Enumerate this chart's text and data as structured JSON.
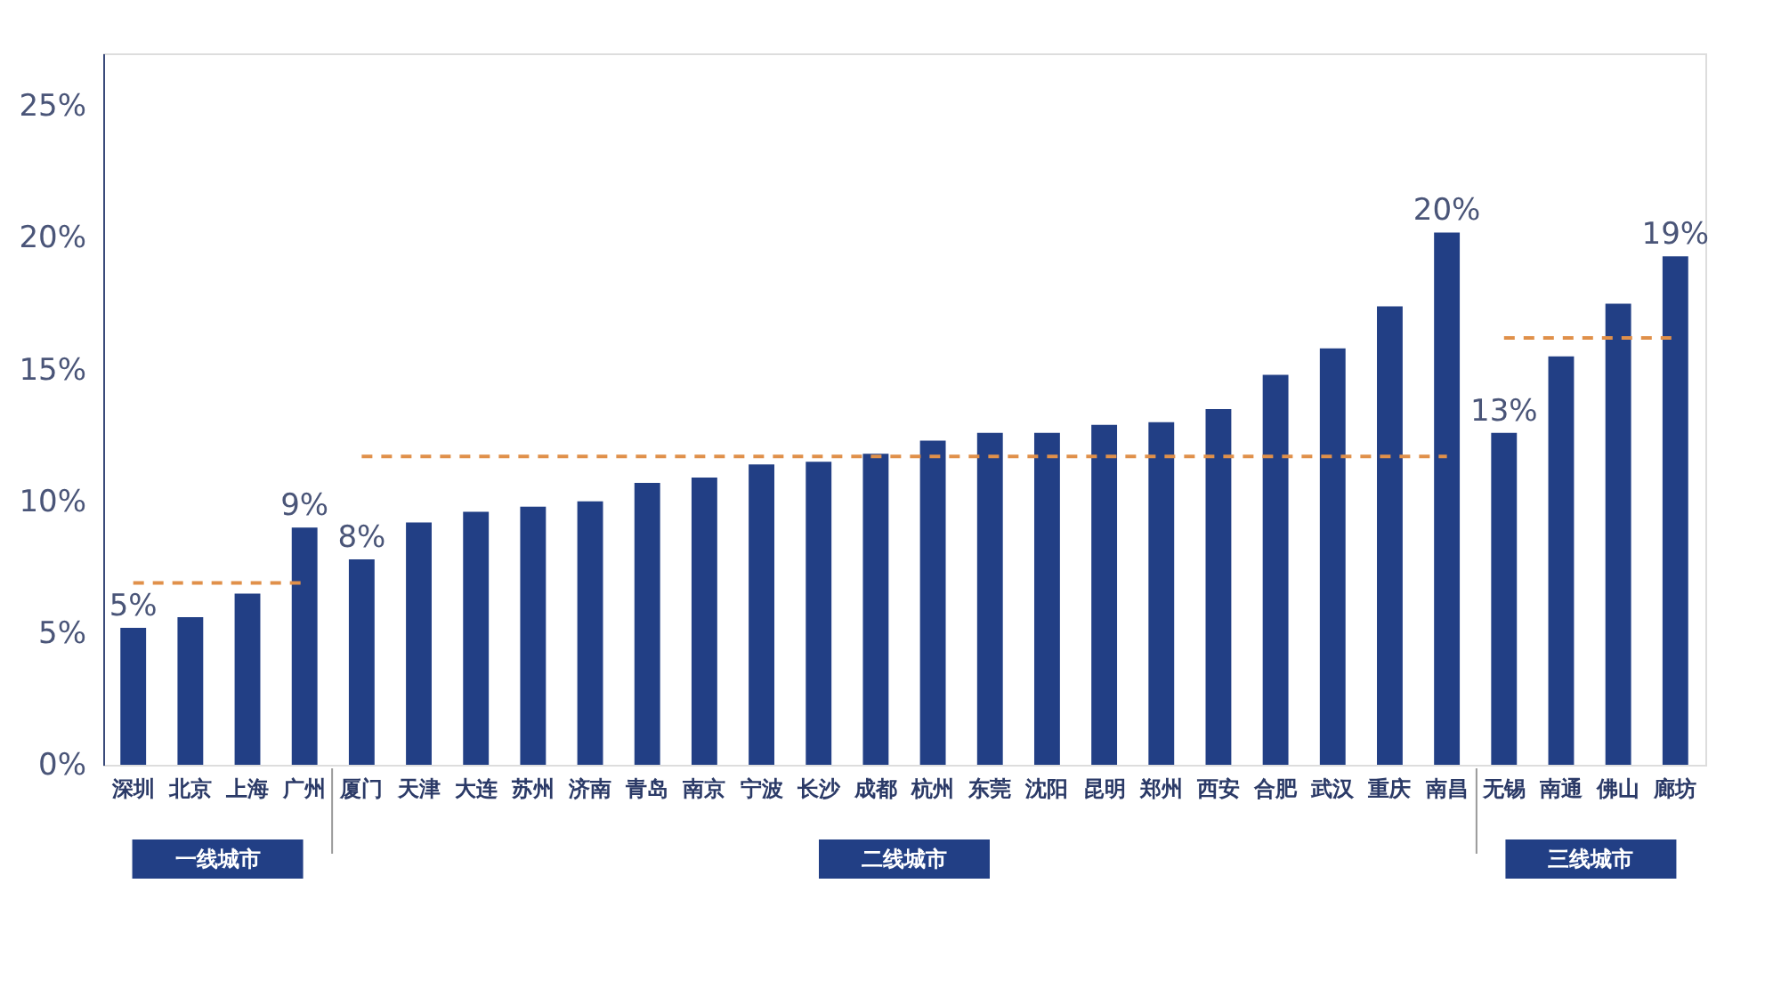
{
  "chart_data": {
    "type": "bar",
    "categories": [
      "深圳",
      "北京",
      "上海",
      "广州",
      "厦门",
      "天津",
      "大连",
      "苏州",
      "济南",
      "青岛",
      "南京",
      "宁波",
      "长沙",
      "成都",
      "杭州",
      "东莞",
      "沈阳",
      "昆明",
      "郑州",
      "西安",
      "合肥",
      "武汉",
      "重庆",
      "南昌",
      "无锡",
      "南通",
      "佛山",
      "廊坊"
    ],
    "series": [
      {
        "color": "#223f85",
        "values": [
          5.2,
          5.6,
          6.5,
          9.0,
          7.8,
          9.2,
          9.6,
          9.8,
          10.0,
          10.7,
          10.9,
          11.4,
          11.5,
          11.8,
          12.3,
          12.6,
          12.6,
          12.9,
          13.0,
          13.5,
          14.8,
          15.8,
          17.4,
          20.2,
          12.6,
          15.5,
          17.5,
          19.3
        ],
        "value_labels": [
          "5%",
          null,
          null,
          "9%",
          "8%",
          null,
          null,
          null,
          null,
          null,
          null,
          null,
          null,
          null,
          null,
          null,
          null,
          null,
          null,
          null,
          null,
          null,
          null,
          "20%",
          "13%",
          null,
          null,
          "19%"
        ]
      },
      {
        "type": "line",
        "color": "#e0904a",
        "line_style": "dashed",
        "x": [
          "深圳",
          "北京",
          "上海",
          "广州"
        ],
        "values": [
          6.9,
          6.9,
          6.9,
          6.9
        ]
      },
      {
        "type": "line",
        "color": "#e0904a",
        "line_style": "dashed",
        "x": [
          "厦门",
          "天津",
          "大连",
          "苏州",
          "济南",
          "青岛",
          "南京",
          "宁波",
          "长沙",
          "成都",
          "杭州",
          "东莞",
          "沈阳",
          "昆明",
          "郑州",
          "西安",
          "合肥",
          "武汉",
          "重庆",
          "南昌"
        ],
        "values": [
          11.7,
          11.7,
          11.7,
          11.7,
          11.7,
          11.7,
          11.7,
          11.7,
          11.7,
          11.7,
          11.7,
          11.7,
          11.7,
          11.7,
          11.7,
          11.7,
          11.7,
          11.7,
          11.7,
          11.7
        ]
      },
      {
        "type": "line",
        "color": "#e0904a",
        "line_style": "dashed",
        "x": [
          "无锡",
          "南通",
          "佛山",
          "廊坊"
        ],
        "values": [
          16.2,
          16.2,
          16.2,
          16.2
        ]
      }
    ],
    "annotations": [
      "一线城市",
      "二线城市",
      "三线城市"
    ],
    "ylim": [
      0,
      27
    ],
    "yticks": [
      {
        "value": 0,
        "label": "0%"
      },
      {
        "value": 5,
        "label": "5%"
      },
      {
        "value": 10,
        "label": "10%"
      },
      {
        "value": 15,
        "label": "15%"
      },
      {
        "value": 20,
        "label": "20%"
      },
      {
        "value": 25,
        "label": "25%"
      }
    ],
    "grid": false
  }
}
